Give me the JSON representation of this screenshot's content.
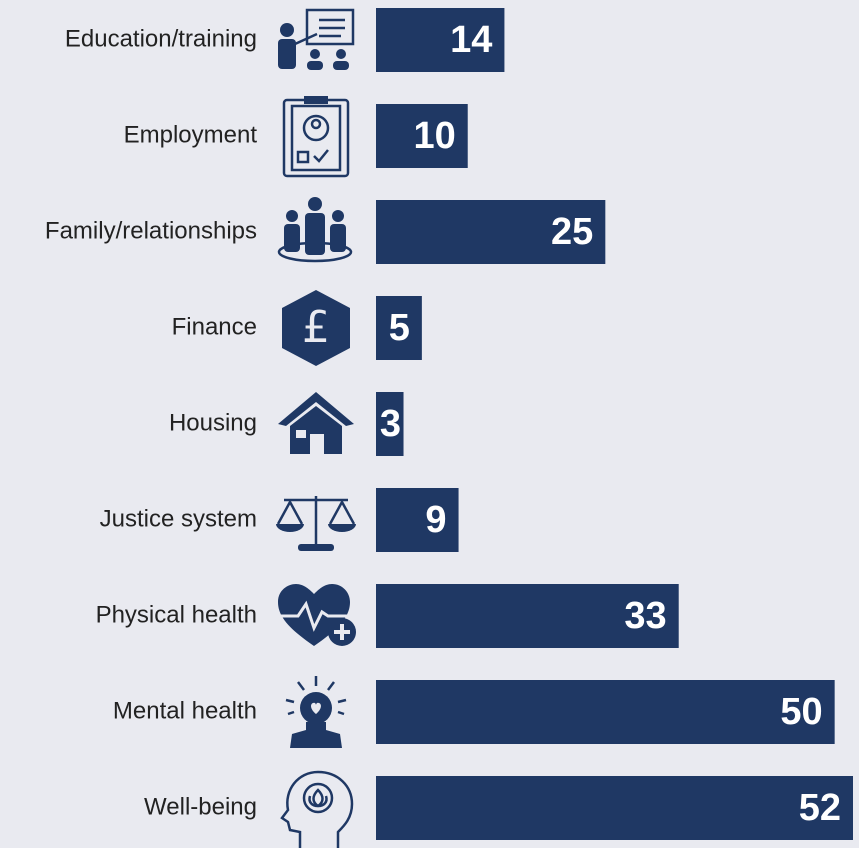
{
  "chart_data": {
    "type": "bar",
    "orientation": "horizontal",
    "color": "#1f3864",
    "categories": [
      "Education/training",
      "Employment",
      "Family/relationships",
      "Finance",
      "Housing",
      "Justice system",
      "Physical health",
      "Mental health",
      "Well-being"
    ],
    "values": [
      14,
      10,
      25,
      5,
      3,
      9,
      33,
      50,
      52
    ]
  }
}
